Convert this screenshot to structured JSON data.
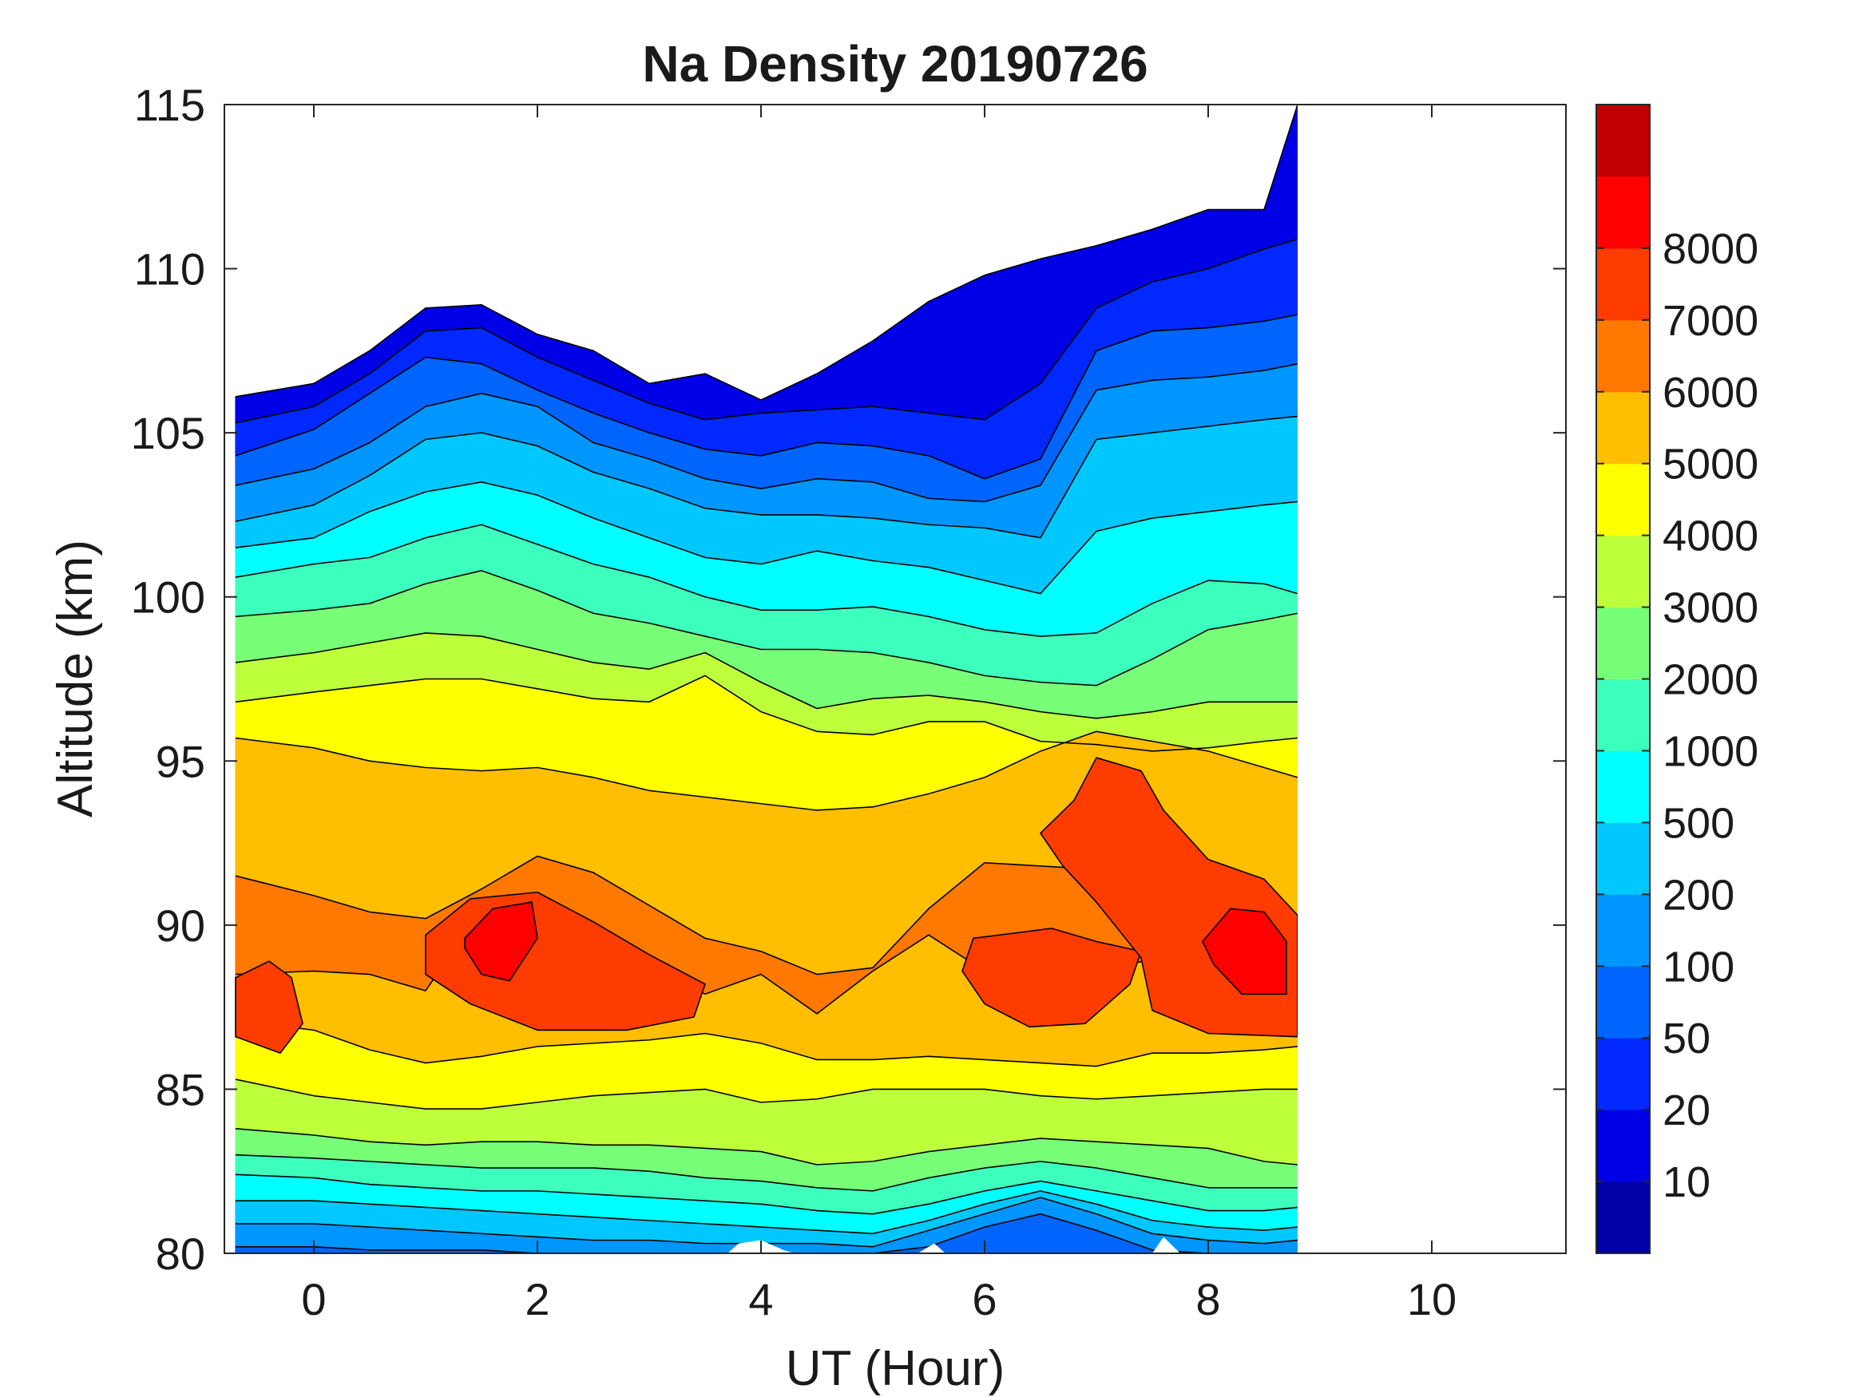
{
  "chart_data": {
    "type": "contourf",
    "title": "Na Density 20190726",
    "xlabel": "UT (Hour)",
    "ylabel": "Altitude (km)",
    "xlim": [
      -0.8,
      11.2
    ],
    "ylim": [
      80,
      115
    ],
    "xticks": [
      0,
      2,
      4,
      6,
      8,
      10
    ],
    "yticks": [
      80,
      85,
      90,
      95,
      100,
      105,
      110,
      115
    ],
    "data_x_range": [
      -0.7,
      8.8
    ],
    "colorbar": {
      "levels": [
        0,
        10,
        20,
        50,
        100,
        200,
        500,
        1000,
        2000,
        3000,
        4000,
        5000,
        6000,
        7000,
        8000,
        9000
      ],
      "tick_labels": [
        "10",
        "20",
        "50",
        "100",
        "200",
        "500",
        "1000",
        "2000",
        "3000",
        "4000",
        "5000",
        "6000",
        "7000",
        "8000"
      ],
      "colors": [
        "#0000a8",
        "#0000e6",
        "#0028ff",
        "#0064ff",
        "#0096ff",
        "#00c8ff",
        "#00ffff",
        "#3cffbe",
        "#78ff78",
        "#beff3c",
        "#ffff00",
        "#ffbe00",
        "#ff7800",
        "#ff3c00",
        "#ff0000",
        "#c00000"
      ]
    },
    "boundaries": {
      "x": [
        -0.7,
        0.0,
        0.5,
        1.0,
        1.5,
        2.0,
        2.5,
        3.0,
        3.5,
        4.0,
        4.5,
        5.0,
        5.5,
        6.0,
        6.5,
        7.0,
        7.5,
        8.0,
        8.5,
        8.8
      ],
      "lines": [
        [
          106.1,
          106.5,
          107.5,
          108.8,
          108.9,
          108.0,
          107.5,
          106.5,
          106.8,
          106.0,
          106.8,
          107.8,
          109.0,
          109.8,
          110.3,
          110.7,
          111.2,
          111.8,
          111.8,
          115.0
        ],
        [
          105.3,
          105.8,
          106.8,
          108.1,
          108.2,
          107.3,
          106.6,
          105.9,
          105.4,
          105.6,
          105.7,
          105.8,
          105.6,
          105.4,
          106.5,
          108.8,
          109.6,
          110.0,
          110.6,
          110.9
        ],
        [
          104.3,
          105.1,
          106.2,
          107.3,
          107.1,
          106.3,
          105.6,
          105.0,
          104.5,
          104.3,
          104.7,
          104.6,
          104.3,
          103.6,
          104.2,
          107.5,
          108.1,
          108.2,
          108.4,
          108.6
        ],
        [
          103.4,
          103.9,
          104.7,
          105.8,
          106.2,
          105.8,
          104.7,
          104.2,
          103.6,
          103.3,
          103.6,
          103.5,
          103.0,
          102.9,
          103.4,
          106.3,
          106.6,
          106.7,
          106.9,
          107.1
        ],
        [
          102.3,
          102.8,
          103.7,
          104.8,
          105.0,
          104.6,
          103.8,
          103.3,
          102.7,
          102.5,
          102.5,
          102.4,
          102.2,
          102.1,
          101.8,
          104.8,
          105.0,
          105.2,
          105.4,
          105.5
        ],
        [
          101.5,
          101.8,
          102.6,
          103.2,
          103.5,
          103.1,
          102.4,
          101.8,
          101.2,
          101.0,
          101.4,
          101.1,
          100.9,
          100.5,
          100.1,
          102.0,
          102.4,
          102.6,
          102.8,
          102.9
        ],
        [
          100.6,
          101.0,
          101.2,
          101.8,
          102.2,
          101.6,
          101.0,
          100.6,
          100.0,
          99.6,
          99.6,
          99.7,
          99.4,
          99.0,
          98.8,
          98.9,
          99.8,
          100.5,
          100.4,
          100.1
        ],
        [
          99.4,
          99.6,
          99.8,
          100.4,
          100.8,
          100.2,
          99.5,
          99.2,
          98.8,
          98.4,
          98.4,
          98.3,
          98.0,
          97.6,
          97.4,
          97.3,
          98.1,
          99.0,
          99.3,
          99.5
        ],
        [
          98.0,
          98.3,
          98.6,
          98.9,
          98.8,
          98.4,
          98.0,
          97.8,
          98.3,
          97.4,
          96.6,
          96.9,
          97.0,
          96.8,
          96.5,
          96.3,
          96.5,
          96.8,
          96.8,
          96.8
        ],
        [
          96.8,
          97.1,
          97.3,
          97.5,
          97.5,
          97.2,
          96.9,
          96.8,
          97.6,
          96.5,
          95.9,
          95.8,
          96.2,
          96.2,
          95.6,
          95.5,
          95.3,
          95.4,
          95.6,
          95.7
        ],
        [
          95.7,
          95.4,
          95.0,
          94.8,
          94.7,
          94.8,
          94.5,
          94.1,
          93.9,
          93.7,
          93.5,
          93.6,
          94.0,
          94.5,
          95.3,
          95.9,
          95.6,
          95.3,
          94.8,
          94.5
        ],
        [
          91.5,
          90.9,
          90.4,
          90.2,
          91.1,
          92.1,
          91.6,
          90.6,
          89.6,
          89.2,
          88.5,
          88.7,
          90.5,
          91.9,
          91.8,
          91.7,
          91.2,
          90.8,
          90.2,
          89.8
        ],
        [
          88.5,
          88.6,
          88.5,
          88.0,
          90.5,
          90.3,
          89.6,
          88.7,
          87.9,
          88.5,
          87.3,
          88.6,
          89.7,
          88.6,
          88.2,
          88.8,
          88.9,
          89.6,
          89.3,
          89.0
        ],
        [
          87.1,
          86.8,
          86.2,
          85.8,
          86.0,
          86.3,
          86.4,
          86.5,
          86.7,
          86.4,
          85.9,
          85.9,
          86.0,
          85.9,
          85.8,
          85.7,
          86.1,
          86.1,
          86.2,
          86.3
        ],
        [
          85.3,
          84.8,
          84.6,
          84.4,
          84.4,
          84.6,
          84.8,
          84.9,
          85.0,
          84.6,
          84.7,
          85.0,
          85.0,
          85.0,
          84.8,
          84.7,
          84.8,
          84.9,
          85.0,
          85.0
        ],
        [
          83.8,
          83.6,
          83.4,
          83.3,
          83.4,
          83.4,
          83.3,
          83.3,
          83.2,
          83.1,
          82.7,
          82.8,
          83.1,
          83.3,
          83.5,
          83.4,
          83.3,
          83.2,
          82.8,
          82.7
        ],
        [
          83.0,
          82.9,
          82.8,
          82.7,
          82.6,
          82.6,
          82.6,
          82.5,
          82.3,
          82.2,
          82.0,
          81.9,
          82.3,
          82.6,
          82.8,
          82.6,
          82.3,
          82.0,
          82.0,
          82.0
        ],
        [
          82.4,
          82.3,
          82.1,
          82.0,
          81.9,
          81.9,
          81.8,
          81.7,
          81.6,
          81.5,
          81.3,
          81.2,
          81.5,
          81.9,
          82.2,
          81.9,
          81.6,
          81.3,
          81.3,
          81.4
        ],
        [
          81.6,
          81.6,
          81.5,
          81.4,
          81.3,
          81.2,
          81.1,
          81.0,
          80.9,
          80.8,
          80.7,
          80.6,
          81.0,
          81.5,
          81.9,
          81.5,
          81.0,
          80.8,
          80.7,
          80.8
        ],
        [
          80.9,
          80.9,
          80.8,
          80.7,
          80.6,
          80.5,
          80.4,
          80.4,
          80.3,
          80.3,
          80.3,
          80.2,
          80.7,
          81.2,
          81.7,
          81.2,
          80.6,
          80.4,
          80.3,
          80.4
        ],
        [
          80.2,
          80.2,
          80.1,
          80.1,
          80.1,
          80.0,
          80.0,
          80.0,
          80.0,
          80.0,
          80.0,
          80.0,
          80.2,
          80.8,
          81.2,
          80.7,
          80.1,
          80.0,
          80.0,
          80.0
        ]
      ],
      "band_level_index": [
        0,
        1,
        2,
        3,
        4,
        5,
        6,
        7,
        8,
        9,
        10,
        11,
        12,
        11,
        10,
        9,
        8,
        7,
        6,
        5,
        4,
        3
      ]
    },
    "peaks": [
      {
        "level_index": 13,
        "points": [
          [
            -0.7,
            88.4
          ],
          [
            -0.4,
            88.9
          ],
          [
            -0.2,
            88.4
          ],
          [
            -0.1,
            87.0
          ],
          [
            -0.3,
            86.1
          ],
          [
            -0.7,
            86.6
          ]
        ]
      },
      {
        "level_index": 13,
        "points": [
          [
            1.0,
            89.7
          ],
          [
            1.4,
            90.8
          ],
          [
            2.0,
            91.0
          ],
          [
            2.5,
            90.1
          ],
          [
            3.0,
            89.1
          ],
          [
            3.5,
            88.2
          ],
          [
            3.4,
            87.2
          ],
          [
            2.8,
            86.8
          ],
          [
            2.0,
            86.8
          ],
          [
            1.4,
            87.6
          ],
          [
            1.0,
            88.5
          ]
        ]
      },
      {
        "level_index": 14,
        "points": [
          [
            1.35,
            89.6
          ],
          [
            1.6,
            90.5
          ],
          [
            1.95,
            90.7
          ],
          [
            2.0,
            89.6
          ],
          [
            1.75,
            88.3
          ],
          [
            1.5,
            88.5
          ],
          [
            1.35,
            89.3
          ]
        ]
      },
      {
        "level_index": 13,
        "points": [
          [
            5.9,
            89.6
          ],
          [
            6.6,
            89.9
          ],
          [
            7.0,
            89.5
          ],
          [
            7.4,
            89.2
          ],
          [
            7.3,
            88.2
          ],
          [
            6.9,
            87.0
          ],
          [
            6.4,
            86.9
          ],
          [
            6.0,
            87.6
          ],
          [
            5.8,
            88.6
          ]
        ]
      },
      {
        "level_index": 13,
        "points": [
          [
            6.5,
            92.8
          ],
          [
            6.8,
            93.8
          ],
          [
            7.0,
            95.1
          ],
          [
            7.4,
            94.7
          ],
          [
            7.6,
            93.5
          ],
          [
            8.0,
            92.0
          ],
          [
            8.5,
            91.4
          ],
          [
            8.8,
            90.3
          ],
          [
            8.8,
            86.6
          ],
          [
            8.0,
            86.7
          ],
          [
            7.5,
            87.4
          ],
          [
            7.4,
            89.0
          ],
          [
            7.0,
            90.7
          ],
          [
            6.7,
            91.8
          ]
        ]
      },
      {
        "level_index": 14,
        "points": [
          [
            7.95,
            89.5
          ],
          [
            8.2,
            90.5
          ],
          [
            8.5,
            90.4
          ],
          [
            8.7,
            89.5
          ],
          [
            8.7,
            87.9
          ],
          [
            8.3,
            87.9
          ],
          [
            8.05,
            88.8
          ]
        ]
      }
    ],
    "gaps": [
      [
        [
          3.7,
          80
        ],
        [
          3.8,
          80.3
        ],
        [
          4.0,
          80.4
        ],
        [
          4.2,
          80.1
        ],
        [
          4.3,
          80
        ]
      ],
      [
        [
          5.4,
          80
        ],
        [
          5.55,
          80.3
        ],
        [
          5.65,
          80
        ]
      ],
      [
        [
          7.5,
          80
        ],
        [
          7.6,
          80.5
        ],
        [
          7.75,
          80
        ]
      ]
    ]
  }
}
